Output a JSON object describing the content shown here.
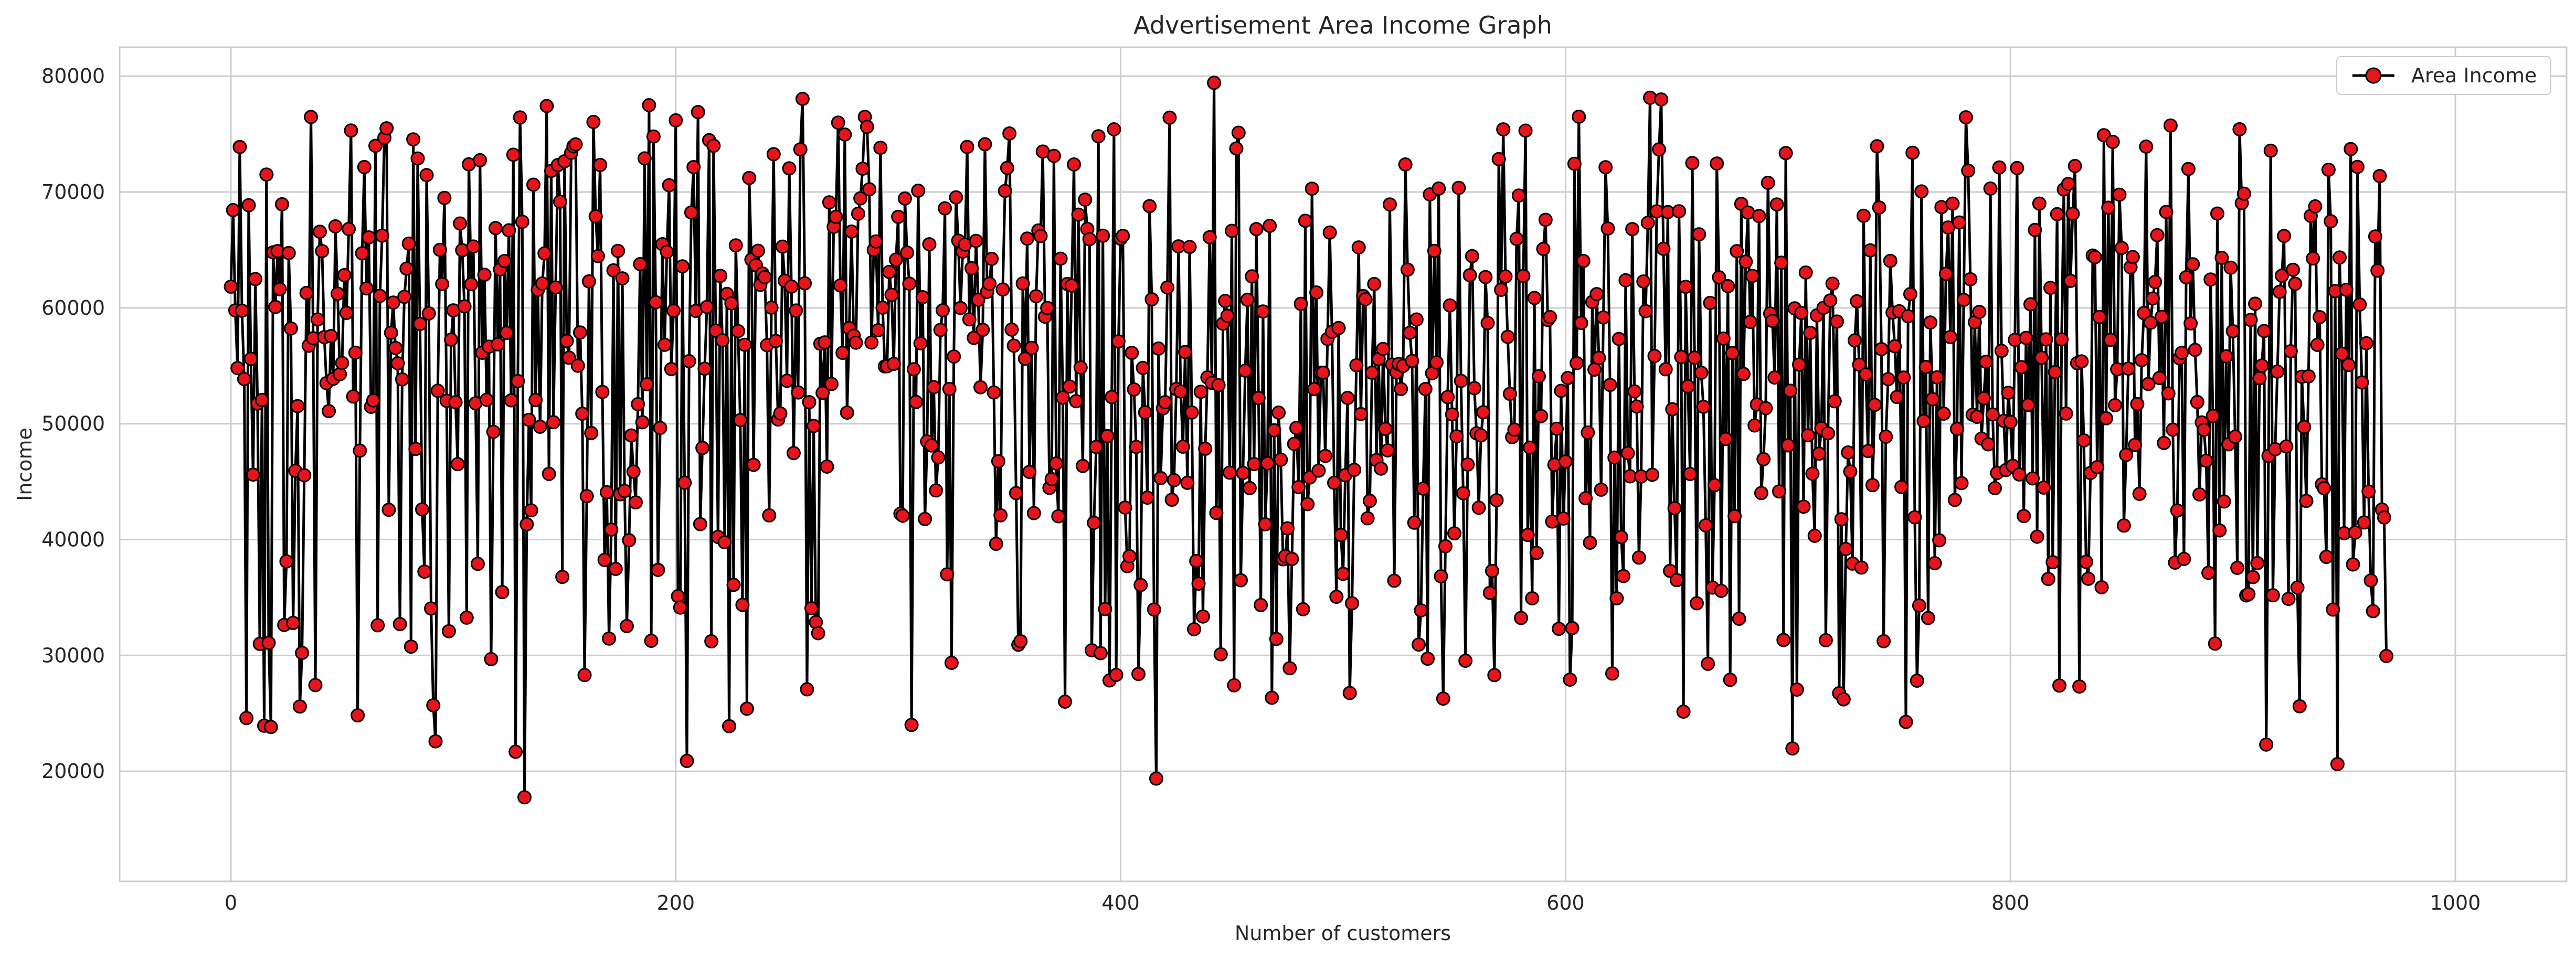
{
  "chart_data": {
    "type": "line",
    "title": "Advertisement Area Income Graph",
    "xlabel": "Number of customers",
    "ylabel": "Income",
    "xlim": [
      -50,
      1050
    ],
    "ylim": [
      10500,
      82500
    ],
    "xticks": [
      0,
      200,
      400,
      600,
      800,
      1000
    ],
    "yticks": [
      20000,
      30000,
      40000,
      50000,
      60000,
      70000,
      80000
    ],
    "grid": true,
    "legend_position": "top-right",
    "series": [
      {
        "name": "Area Income",
        "line_color": "#000000",
        "marker_face": "#e8141c",
        "marker_edge": "#000000",
        "x_start": 0,
        "x_step": 1,
        "values": [
          61834,
          68441,
          59786,
          54806,
          73890,
          59761,
          53852,
          24593,
          68863,
          55606,
          45610,
          62491,
          51738,
          31001,
          52053,
          23936,
          71511,
          31087,
          23822,
          64795,
          60080,
          64902,
          61609,
          68944,
          32636,
          38118,
          64739,
          58230,
          32810,
          45938,
          51522,
          25594,
          30221,
          45547,
          61289,
          56738,
          76480,
          57380,
          27442,
          59000,
          66573,
          64903,
          57473,
          53506,
          51093,
          57568,
          53878,
          67034,
          61227,
          54276,
          55244,
          62826,
          59563,
          66809,
          75310,
          52350,
          56135,
          24828,
          47676,
          64719,
          72157,
          61683,
          66083,
          51460,
          52010,
          73986,
          32602,
          61042,
          66240,
          74683,
          75500,
          42576,
          57857,
          60459,
          56543,
          55219,
          32705,
          53829,
          60954,
          63391,
          65546,
          30759,
          74542,
          47821,
          72895,
          58619,
          42607,
          37235,
          71466,
          59524,
          34050,
          25692,
          22584,
          52847,
          65011,
          62056,
          69492,
          51985,
          32093,
          57254,
          59784,
          51863,
          46511,
          67286,
          64977,
          60132,
          33262,
          72392,
          62042,
          65296,
          51768,
          37904,
          72746,
          56124,
          62862,
          52072,
          56659,
          29681,
          49303,
          66885,
          56850,
          63316,
          35467,
          64047,
          57845,
          66695,
          52020,
          73222,
          21691,
          53684,
          76437,
          67433,
          17754,
          41320,
          50342,
          42530,
          70638,
          52045,
          61558,
          49741,
          62104,
          64706,
          77428,
          45670,
          71817,
          50132,
          61760,
          72330,
          69170,
          36779,
          72652,
          57146,
          55700,
          73391,
          73944,
          74113,
          55009,
          57879,
          50864,
          28306,
          43749,
          62285,
          49201,
          76050,
          67903,
          64467,
          72337,
          52743,
          38245,
          44085,
          31455,
          40860,
          63238,
          37466,
          64923,
          43908,
          62548,
          44201,
          32535,
          39942,
          48985,
          45865,
          43212,
          51690,
          63776,
          50127,
          72904,
          53412,
          77498,
          31263,
          74794,
          60489,
          37391,
          49637,
          65497,
          56815,
          64840,
          70585,
          54718,
          59761,
          76186,
          35117,
          34133,
          63587,
          44910,
          20897,
          55401,
          68234,
          72152,
          59740,
          76901,
          41331,
          47913,
          54751,
          60080,
          74472,
          31220,
          73996,
          58034,
          40231,
          62765,
          57197,
          39773,
          61203,
          23894,
          60394,
          36096,
          65395,
          57999,
          50318,
          34364,
          56818,
          25403,
          71215,
          64164,
          46451,
          63690,
          64930,
          61990,
          62966,
          62652,
          56779,
          42090,
          60015,
          73268,
          57148,
          50365,
          50890,
          65287,
          62346,
          53711,
          72044,
          61838,
          47470,
          59774,
          52700,
          73684,
          78039,
          62116,
          27073,
          51860,
          34072,
          49812,
          32870,
          31920,
          56908,
          52660,
          57022,
          46303,
          69107,
          53432,
          66993,
          67862,
          75993,
          61934,
          56117,
          74959,
          50961,
          58254,
          66587,
          57600,
          56998,
          68127,
          69452,
          72012,
          76487,
          75632,
          70239,
          57010,
          65000,
          65733,
          58070,
          73821,
          60017,
          54952,
          54965,
          63107,
          61125,
          55166,
          64167,
          67860,
          42235,
          42061,
          69440,
          64773,
          62092,
          24005,
          54702,
          51873,
          70115,
          56939,
          60924,
          41777,
          48469,
          65493,
          48122,
          53155,
          44241,
          47089,
          58099,
          59789,
          68595,
          37000,
          53002,
          29359,
          55802,
          69540,
          65804,
          59990,
          64852,
          65463,
          73893,
          59008,
          63426,
          57407,
          65785,
          60700,
          53146,
          58107,
          74124,
          61390,
          62087,
          64232,
          52700,
          39633,
          46764,
          42097,
          61590,
          70092,
          72080,
          75057,
          58125,
          56738,
          44015,
          30922,
          31224,
          62103,
          55614,
          65980,
          45839,
          56550,
          42286,
          61005,
          66679,
          66200,
          73491,
          59240,
          60000,
          44466,
          45224,
          73124,
          46568,
          42014,
          64246,
          52254,
          26009,
          62066,
          53211,
          61923,
          72380,
          51944,
          68049,
          54855,
          46356,
          69340,
          66812,
          65926,
          30446,
          41447,
          48000,
          74815,
          30200,
          66236,
          34002,
          48931,
          27844,
          52301,
          75414,
          28320,
          57109,
          65970,
          66217,
          42760,
          37700,
          38560,
          56120,
          52960,
          48000,
          28400,
          36080,
          54820,
          50980,
          43620,
          68780,
          60740,
          33960,
          19370,
          56490,
          45310,
          51330,
          51860,
          61760,
          76420,
          43440,
          45130,
          53000,
          65310,
          52780,
          48020,
          56190,
          44900,
          65260,
          50970,
          32260,
          38150,
          36200,
          52760,
          33360,
          47840,
          54000,
          66100,
          53530,
          79430,
          42300,
          53330,
          30100,
          58640,
          60600,
          59320,
          45780,
          66650,
          27420,
          73760,
          75120,
          36490,
          45750,
          54580,
          60700,
          44450,
          62720,
          46520,
          66800,
          52220,
          34350,
          59690,
          41320,
          46580,
          67080,
          26350,
          49430,
          31420,
          50960,
          46900,
          38300,
          38570,
          40970,
          28900,
          38330,
          48260,
          49640,
          44530,
          60350,
          33990,
          67520,
          43060,
          45360,
          70290,
          52990,
          61330,
          45950,
          54400,
          54400,
          47220,
          57320,
          66500,
          57930,
          44900,
          35060,
          58260,
          40400,
          37040,
          45560,
          52230,
          26760,
          34500,
          46020,
          55050,
          65220,
          50840,
          61020,
          60740,
          41840,
          43340,
          54400,
          62060,
          46860,
          55590,
          46130,
          56460,
          49550,
          47700,
          68930,
          55110,
          36450,
          54430,
          55160,
          53000,
          54990,
          72380,
          63300,
          57850,
          55420,
          41460,
          59000,
          30940,
          33890,
          44400,
          53000,
          29720,
          69800,
          54350,
          64920,
          55300,
          70300,
          36830,
          26270,
          39420,
          52300,
          60210,
          50800,
          40540,
          48910,
          70360,
          53700,
          44000,
          29540,
          46480,
          62820,
          64470,
          53070,
          49170,
          42750,
          48990,
          50990,
          62660,
          58690,
          35400,
          37300,
          28300,
          43400,
          72840,
          61560,
          75410,
          62710,
          57500,
          52580,
          48840,
          49490,
          65960,
          69700,
          33230,
          62750,
          75300,
          40400,
          47940,
          34930,
          60860,
          38850,
          54100,
          50660,
          65090,
          67600,
          58960,
          59210,
          41560,
          46460,
          49570,
          32300,
          52840,
          41820,
          46740,
          53950,
          27910,
          32360,
          72440,
          55230,
          76500,
          58700,
          64050,
          43570,
          49240,
          39730,
          60510,
          54670,
          61190,
          55690,
          44310,
          59170,
          72140,
          66850,
          53350,
          28440,
          47080,
          34930,
          57320,
          40220,
          36850,
          62380,
          47460,
          45460,
          66800,
          52790,
          51480,
          38450,
          45450,
          62280,
          59720,
          67350,
          78140,
          45600,
          55850,
          68330,
          73680,
          77990,
          65100,
          54700,
          68270,
          37300,
          51250,
          42710,
          36500,
          68340,
          55770,
          25150,
          61820,
          53230,
          45660,
          72500,
          55700,
          34500,
          66350,
          54400,
          51460,
          41230,
          29280,
          60430,
          35860,
          44700,
          72460,
          62640,
          35580,
          57350,
          48680,
          61880,
          27900,
          56100,
          42020,
          64900,
          33170,
          68980,
          54300,
          63990,
          68230,
          58790,
          62760,
          49850,
          51660,
          67930,
          44020,
          46940,
          51340,
          70800,
          59510,
          58880,
          53990,
          68930,
          44160,
          63900,
          31330,
          73360,
          48130,
          52850,
          21970,
          59960,
          27050,
          55110,
          59560,
          42840,
          63050,
          49000,
          57850,
          45690,
          40330,
          59350,
          47420,
          49610,
          60010,
          31310,
          49170,
          60640,
          62090,
          51940,
          58820,
          26740,
          41760,
          26210,
          39190,
          47520,
          45870,
          37930,
          57190,
          60570,
          55100,
          37590,
          67950,
          54260,
          47640,
          64960,
          44700,
          51630,
          73950,
          68660,
          56440,
          31230,
          48880,
          53850,
          64060,
          59600,
          56690,
          52310,
          59710,
          44540,
          53990,
          24260,
          59280,
          61190,
          73390,
          41920,
          27820,
          34310,
          70050,
          50230,
          54900,
          33230,
          58740,
          52120,
          37960,
          54000,
          39940,
          68700,
          50870,
          62940,
          66940,
          57480,
          69000,
          43420,
          49550,
          67370,
          44870,
          60690,
          76450,
          71850,
          62470,
          50780,
          58760,
          50600,
          59650,
          48720,
          52200,
          55350,
          48220,
          70300,
          50800,
          44440,
          45750,
          72120,
          56290,
          50250,
          46000,
          52670,
          50150,
          46360,
          57240,
          72070,
          45620,
          54880,
          42030,
          57410,
          51620,
          60310,
          45280,
          66730,
          40250,
          69000,
          55700,
          44490,
          57280,
          36600,
          61730,
          38050,
          54460,
          68090,
          27400,
          57280,
          70220,
          50880,
          70700,
          62330,
          68120,
          72250,
          55230,
          27320,
          55380,
          48560,
          38080,
          36620,
          45750,
          64520,
          64380,
          46250,
          59220,
          35880,
          74900,
          50470,
          68650,
          57240,
          74330,
          51600,
          54700,
          69770,
          65170,
          41210,
          47310,
          54760,
          63510,
          64390,
          48170,
          51700,
          43950,
          55490,
          59550,
          73920,
          53430,
          58720,
          60810,
          62240,
          66280,
          53950,
          59230,
          48340,
          68280,
          52620,
          75740,
          49490,
          38010,
          42510,
          55650,
          56120,
          38330,
          62650,
          71990,
          58660,
          63760,
          56370,
          51870,
          43900,
          50110,
          49480,
          46810,
          37130,
          62450,
          50670,
          31020,
          68140,
          40790,
          64320,
          43290,
          55820,
          48220,
          63470,
          57990,
          48880,
          37560,
          75420,
          69040,
          69860,
          35180,
          35290,
          58960,
          36760,
          60360,
          37970,
          53930,
          55020,
          58000,
          22310,
          47230,
          73570,
          35190,
          47800,
          54500,
          61390,
          62780,
          66210,
          48040,
          34880,
          56260,
          63290,
          62080,
          35860,
          25610,
          54060,
          49720,
          43340,
          54100,
          67940,
          64270,
          68760,
          56810,
          59200,
          44770,
          44430,
          38510,
          71920,
          67480,
          33960,
          61450,
          20620,
          64350,
          56050,
          40550,
          61560,
          55070,
          73710,
          37850,
          40610,
          72170,
          60290,
          53570,
          41480,
          56950,
          44150,
          36470,
          33820,
          66160,
          63220,
          71380,
          42590,
          41910,
          29950
        ]
      }
    ]
  }
}
